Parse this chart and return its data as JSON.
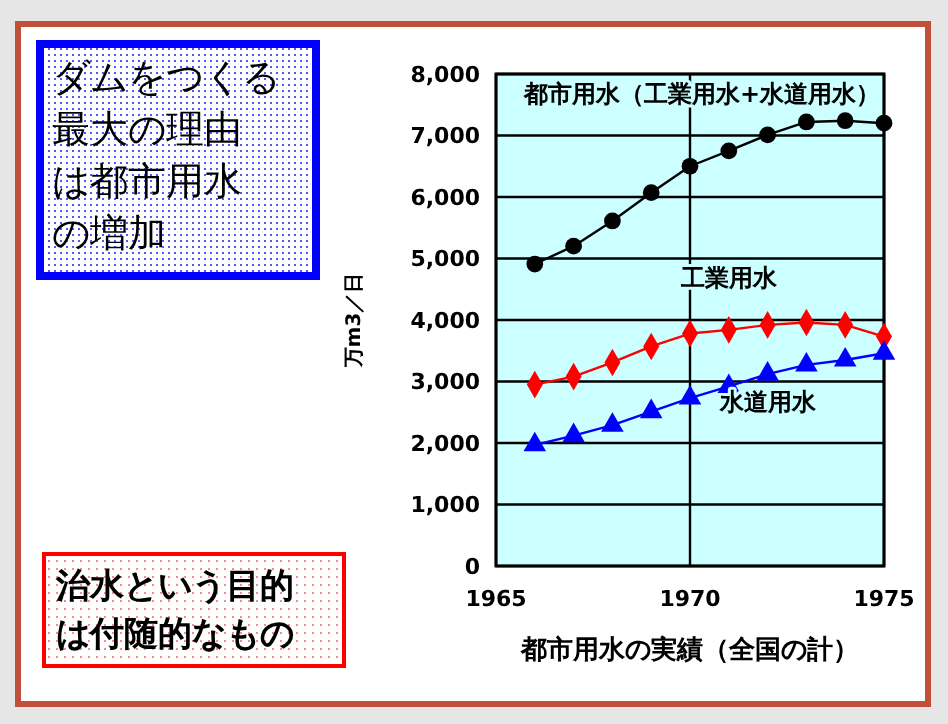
{
  "chart_data": {
    "type": "line",
    "xlabel": "都市用水の実績（全国の計）",
    "ylabel": "万m3／日",
    "xlim": [
      1965,
      1975
    ],
    "xticks": [
      1965,
      1970,
      1975
    ],
    "ylim": [
      0,
      8000
    ],
    "yticks": [
      {
        "value": 0,
        "label": "0"
      },
      {
        "value": 1000,
        "label": "1,000"
      },
      {
        "value": 2000,
        "label": "2,000"
      },
      {
        "value": 3000,
        "label": "3,000"
      },
      {
        "value": 4000,
        "label": "4,000"
      },
      {
        "value": 5000,
        "label": "5,000"
      },
      {
        "value": 6000,
        "label": "6,000"
      },
      {
        "value": 7000,
        "label": "7,000"
      },
      {
        "value": 8000,
        "label": "8,000"
      }
    ],
    "grid": true,
    "x": [
      1966,
      1967,
      1968,
      1969,
      1970,
      1971,
      1972,
      1973,
      1974,
      1975
    ],
    "series": [
      {
        "name": "都市用水（工業用水+水道用水）",
        "color": "#000000",
        "marker": "circle",
        "values": [
          4910,
          5200,
          5610,
          6070,
          6500,
          6750,
          7010,
          7220,
          7240,
          7200
        ]
      },
      {
        "name": "工業用水",
        "color": "#ff0000",
        "marker": "diamond",
        "values": [
          2950,
          3080,
          3310,
          3570,
          3780,
          3840,
          3920,
          3960,
          3920,
          3730
        ]
      },
      {
        "name": "水道用水",
        "color": "#0000ff",
        "marker": "triangle",
        "values": [
          1970,
          2120,
          2290,
          2510,
          2730,
          2920,
          3120,
          3270,
          3350,
          3460
        ]
      }
    ],
    "annotations": [
      "ダムをつくる最大の理由は都市用水の増加",
      "治水という目的は付随的なもの"
    ]
  }
}
